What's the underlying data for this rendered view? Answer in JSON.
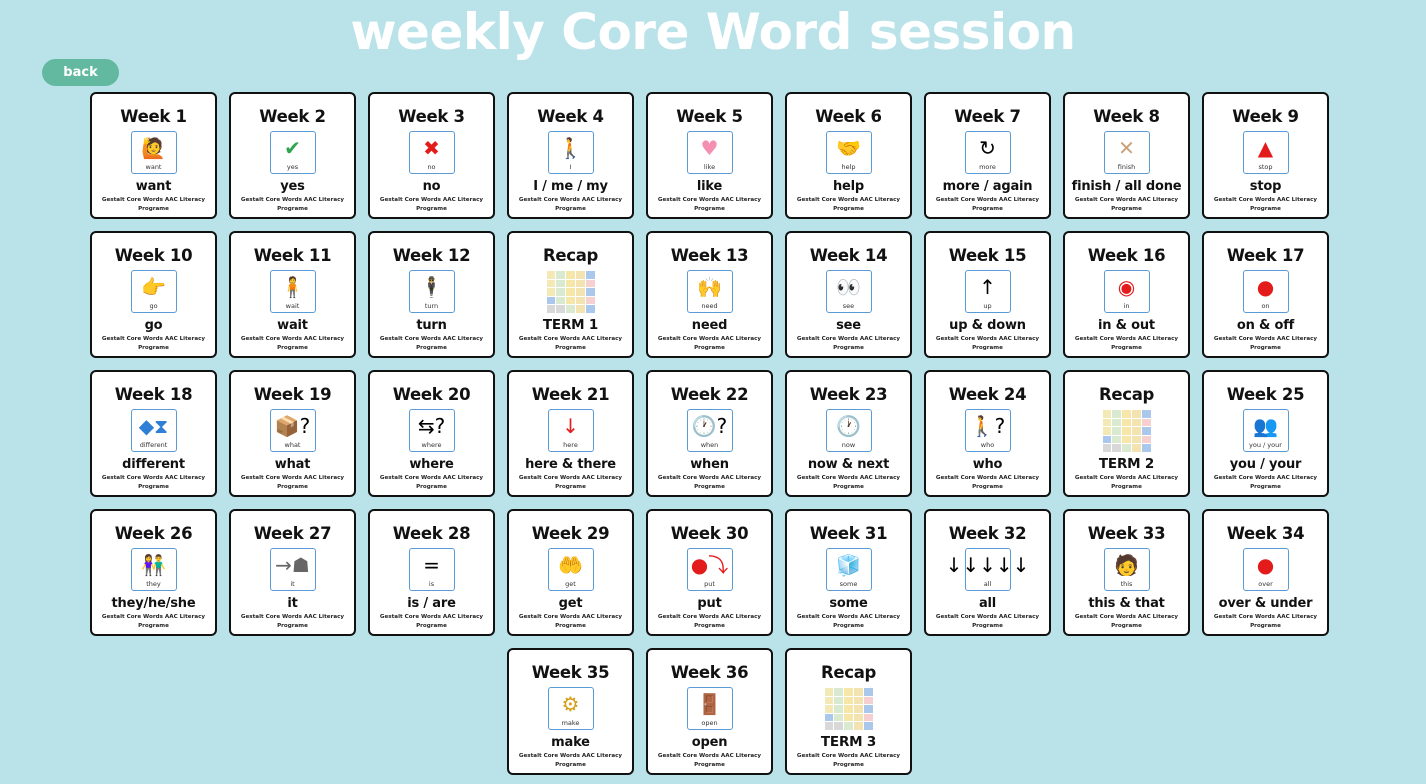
{
  "page": {
    "title": "weekly Core Word session",
    "back_label": "back",
    "colors": {
      "background": "#b9e2e9",
      "title": "#ffffff",
      "back_button": "#62b9a0",
      "card_border": "#111111",
      "symbol_border": "#5b9bd5"
    }
  },
  "subtitle": "Gestalt Core Words AAC Literacy Programe",
  "cards": [
    {
      "title": "Week 1",
      "symbol_label": "want",
      "icon": "want-icon",
      "glyph": "🙋",
      "word": "want"
    },
    {
      "title": "Week 2",
      "symbol_label": "yes",
      "icon": "checkmark-icon",
      "glyph": "✔",
      "color": "#2ea44f",
      "word": "yes"
    },
    {
      "title": "Week 3",
      "symbol_label": "no",
      "icon": "cross-icon",
      "glyph": "✖",
      "color": "#e31b1b",
      "word": "no"
    },
    {
      "title": "Week 4",
      "symbol_label": "I",
      "icon": "person-pointing-self-icon",
      "glyph": "🚶",
      "word": "I / me / my"
    },
    {
      "title": "Week 5",
      "symbol_label": "like",
      "icon": "heart-icon",
      "glyph": "♥",
      "color": "#f48fb1",
      "word": "like"
    },
    {
      "title": "Week 6",
      "symbol_label": "help",
      "icon": "help-hands-icon",
      "glyph": "🤝",
      "word": "help"
    },
    {
      "title": "Week 7",
      "symbol_label": "more",
      "icon": "more-arrows-icon",
      "glyph": "↻",
      "word": "more / again"
    },
    {
      "title": "Week 8",
      "symbol_label": "finish",
      "icon": "crossed-arms-icon",
      "glyph": "✕",
      "color": "#c9a27a",
      "word": "finish / all done"
    },
    {
      "title": "Week 9",
      "symbol_label": "stop",
      "icon": "stop-hand-sign-icon",
      "glyph": "▲",
      "color": "#e31b1b",
      "word": "stop"
    },
    {
      "title": "Week 10",
      "symbol_label": "go",
      "icon": "pointing-hand-icon",
      "glyph": "👉",
      "word": "go"
    },
    {
      "title": "Week 11",
      "symbol_label": "wait",
      "icon": "waiting-person-icon",
      "glyph": "🧍",
      "word": "wait"
    },
    {
      "title": "Week 12",
      "symbol_label": "turn",
      "icon": "turn-person-icon",
      "glyph": "🕴",
      "word": "turn"
    },
    {
      "title": "Recap",
      "recap": true,
      "icon": "recap-grid-thumbnail",
      "word": "TERM 1"
    },
    {
      "title": "Week 13",
      "symbol_label": "need",
      "icon": "need-person-icon",
      "glyph": "🙌",
      "word": "need"
    },
    {
      "title": "Week 14",
      "symbol_label": "see",
      "icon": "eyes-icon",
      "glyph": "👀",
      "word": "see"
    },
    {
      "title": "Week 15",
      "symbol_label": "up",
      "icon": "up-arrow-icon",
      "glyph": "↑",
      "word": "up & down"
    },
    {
      "title": "Week 16",
      "symbol_label": "in",
      "icon": "dot-in-box-icon",
      "glyph": "◉",
      "color": "#e31b1b",
      "word": "in & out"
    },
    {
      "title": "Week 17",
      "symbol_label": "on",
      "icon": "dot-on-box-icon",
      "glyph": "●",
      "color": "#e31b1b",
      "word": "on & off"
    },
    {
      "title": "Week 18",
      "symbol_label": "different",
      "icon": "different-shapes-icon",
      "glyph": "◆⧗",
      "color": "#2f7fd6",
      "word": "different"
    },
    {
      "title": "Week 19",
      "symbol_label": "what",
      "icon": "box-question-icon",
      "glyph": "📦?",
      "word": "what"
    },
    {
      "title": "Week 20",
      "symbol_label": "where",
      "icon": "signpost-question-icon",
      "glyph": "⇆?",
      "word": "where"
    },
    {
      "title": "Week 21",
      "symbol_label": "here",
      "icon": "arrow-to-dot-icon",
      "glyph": "↓",
      "color": "#e31b1b",
      "word": "here & there"
    },
    {
      "title": "Week 22",
      "symbol_label": "when",
      "icon": "clock-question-icon",
      "glyph": "🕐?",
      "word": "when"
    },
    {
      "title": "Week 23",
      "symbol_label": "now",
      "icon": "clock-arrow-icon",
      "glyph": "🕐",
      "word": "now & next"
    },
    {
      "title": "Week 24",
      "symbol_label": "who",
      "icon": "person-question-icon",
      "glyph": "🚶?",
      "word": "who"
    },
    {
      "title": "Recap",
      "recap": true,
      "icon": "recap-grid-thumbnail",
      "word": "TERM 2"
    },
    {
      "title": "Week 25",
      "symbol_label": "you / your",
      "icon": "two-people-icon",
      "glyph": "👥",
      "word": "you / your"
    },
    {
      "title": "Week 26",
      "symbol_label": "they",
      "icon": "group-people-icon",
      "glyph": "👫",
      "word": "they/he/she"
    },
    {
      "title": "Week 27",
      "symbol_label": "it",
      "icon": "arrow-to-object-icon",
      "glyph": "→☗",
      "color": "#666666",
      "word": "it"
    },
    {
      "title": "Week 28",
      "symbol_label": "is",
      "icon": "equals-icon",
      "glyph": "=",
      "word": "is / are"
    },
    {
      "title": "Week 29",
      "symbol_label": "get",
      "icon": "person-reaching-icon",
      "glyph": "🤲",
      "word": "get"
    },
    {
      "title": "Week 30",
      "symbol_label": "put",
      "icon": "ball-into-container-icon",
      "glyph": "●⤵",
      "color": "#e31b1b",
      "word": "put"
    },
    {
      "title": "Week 31",
      "symbol_label": "some",
      "icon": "blocks-icon",
      "glyph": "🧊",
      "word": "some"
    },
    {
      "title": "Week 32",
      "symbol_label": "all",
      "icon": "many-arrows-icon",
      "glyph": "↓↓↓↓↓",
      "word": "all"
    },
    {
      "title": "Week 33",
      "symbol_label": "this",
      "icon": "person-at-table-icon",
      "glyph": "🧑",
      "word": "this & that"
    },
    {
      "title": "Week 34",
      "symbol_label": "over",
      "icon": "dot-over-box-icon",
      "glyph": "●",
      "color": "#e31b1b",
      "word": "over & under"
    },
    {
      "title": "Week 35",
      "symbol_label": "make",
      "icon": "person-making-icon",
      "glyph": "⚙",
      "color": "#d4a017",
      "word": "make"
    },
    {
      "title": "Week 36",
      "symbol_label": "open",
      "icon": "open-door-icon",
      "glyph": "🚪",
      "word": "open"
    },
    {
      "title": "Recap",
      "recap": true,
      "icon": "recap-grid-thumbnail",
      "word": "TERM 3"
    }
  ],
  "recap_grid_colors": [
    "#f3e9b5",
    "#d9ead0",
    "#f6e7a8",
    "#f3e3b0",
    "#a9c8ec",
    "#f3e9b5",
    "#d9ead0",
    "#f6e7a8",
    "#f3e3b0",
    "#f6d0d0",
    "#f3e9b5",
    "#d9ead0",
    "#f6e7a8",
    "#f3e3b0",
    "#a9c8ec",
    "#a9c8ec",
    "#d9ead0",
    "#f6e7a8",
    "#f3e3b0",
    "#f6d0d0",
    "#d8d8d8",
    "#d8d8d8",
    "#d9ead0",
    "#f3e3b0",
    "#a9c8ec"
  ]
}
